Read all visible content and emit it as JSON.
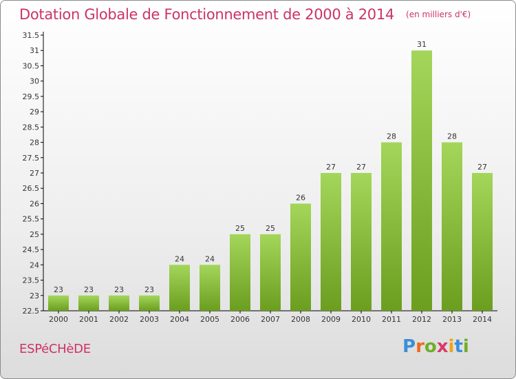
{
  "chart_data": {
    "type": "bar",
    "title": "Dotation Globale de Fonctionnement de 2000 à 2014",
    "subtitle": "(en milliers d'€)",
    "categories": [
      "2000",
      "2001",
      "2002",
      "2003",
      "2004",
      "2005",
      "2006",
      "2007",
      "2008",
      "2009",
      "2010",
      "2011",
      "2012",
      "2013",
      "2014"
    ],
    "values": [
      23,
      23,
      23,
      23,
      24,
      24,
      25,
      25,
      26,
      27,
      27,
      28,
      31,
      28,
      27
    ],
    "data_labels": [
      "23",
      "23",
      "23",
      "23",
      "24",
      "24",
      "25",
      "25",
      "26",
      "27",
      "27",
      "28",
      "31",
      "28",
      "27"
    ],
    "ylim": [
      22.5,
      31.5
    ],
    "yticks": [
      "22.5",
      "23",
      "23.5",
      "24",
      "24.5",
      "25",
      "25.5",
      "26",
      "26.5",
      "27",
      "27.5",
      "28",
      "28.5",
      "29",
      "29.5",
      "30",
      "30.5",
      "31",
      "31.5"
    ],
    "grid": false,
    "legend": "none",
    "colors": {
      "bar_light": "#a3d65a",
      "bar_dark": "#6b9e1f",
      "title": "#cc3366"
    }
  },
  "footer": {
    "commune": "ESPéCHèDE",
    "brand": "Proxiti",
    "brand_letter_colors": [
      "#3a8fd8",
      "#ef6a1c",
      "#6fae2a",
      "#d93a6a",
      "#f2a319",
      "#3a8fd8",
      "#6fae2a"
    ]
  }
}
